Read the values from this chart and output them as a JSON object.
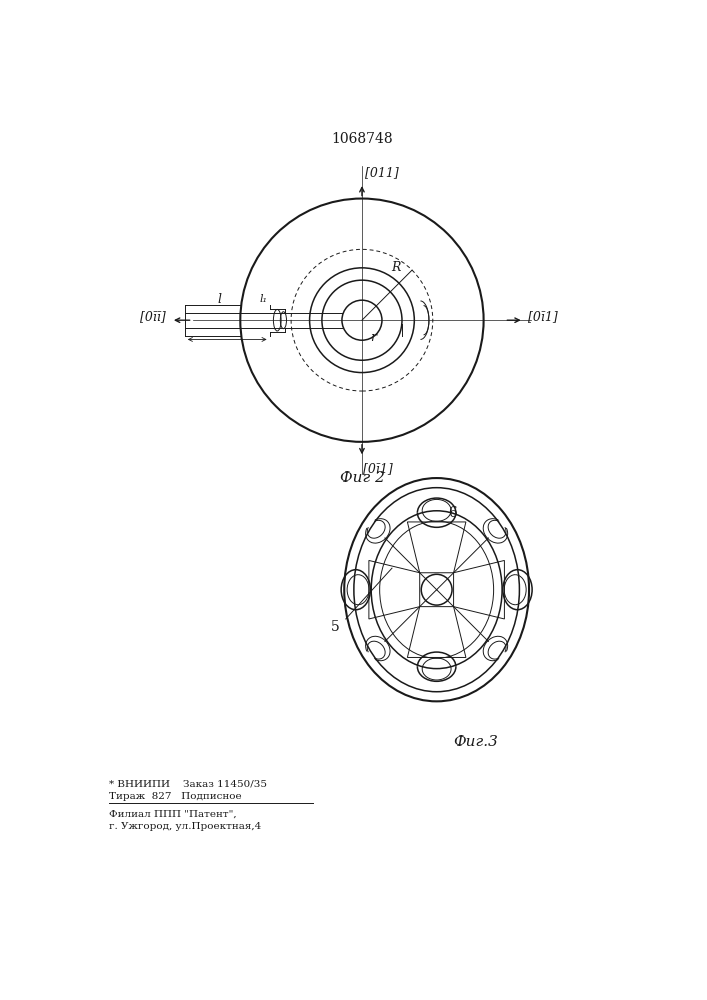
{
  "title": "1068748",
  "fig2_label": "Фиг 2",
  "fig3_label": "Фиг.3",
  "label_011_top": "[011]",
  "label_011_bottom": "[0ī1]",
  "label_011_left": "[0īī]",
  "label_011_right": "[0ī1]",
  "bottom_text1": "* ВНИИПИ    Заказ 11450/35",
  "bottom_text2": "Тираж  827   Подписное",
  "bottom_text3": "Филиал ППП \"Патент\",",
  "bottom_text4": "г. Ужгород, ул.Проектная,4",
  "bg_color": "#ffffff",
  "line_color": "#1a1a1a"
}
